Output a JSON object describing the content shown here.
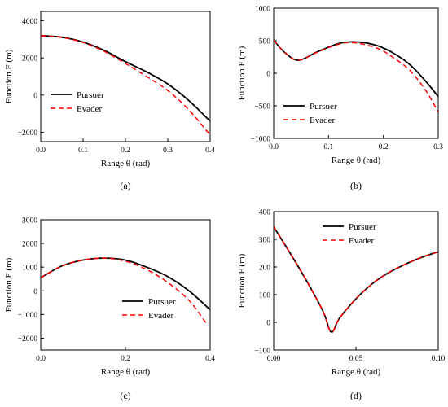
{
  "figure": {
    "colors": {
      "pursuer": "#000000",
      "evader": "#ff0000"
    }
  },
  "chart_data": [
    {
      "type": "line",
      "panel_label": "(a)",
      "xlabel": "Range θ (rad)",
      "ylabel": "Function F (m)",
      "xlim": [
        0,
        0.4
      ],
      "ylim": [
        -2500,
        4500
      ],
      "x_ticks": [
        0.0,
        0.1,
        0.2,
        0.3,
        0.4
      ],
      "x_tick_labels": [
        "0.0",
        "0.1",
        "0.2",
        "0.3",
        "0.4"
      ],
      "y_ticks": [
        -2000,
        0,
        2000,
        4000
      ],
      "y_tick_labels": [
        "−2000",
        "0",
        "2000",
        "4000"
      ],
      "legend_position": "middle-left",
      "series": [
        {
          "name": "Pursuer",
          "style": "solid",
          "x": [
            0.0,
            0.05,
            0.1,
            0.15,
            0.2,
            0.25,
            0.3,
            0.35,
            0.4
          ],
          "y": [
            3200,
            3110,
            2850,
            2400,
            1800,
            1250,
            600,
            -300,
            -1400
          ]
        },
        {
          "name": "Evader",
          "style": "dashed",
          "x": [
            0.0,
            0.05,
            0.1,
            0.15,
            0.2,
            0.25,
            0.3,
            0.35,
            0.4
          ],
          "y": [
            3200,
            3100,
            2830,
            2350,
            1700,
            1000,
            250,
            -800,
            -2150
          ]
        }
      ]
    },
    {
      "type": "line",
      "panel_label": "(b)",
      "xlabel": "Range θ (rad)",
      "ylabel": "Function F (m)",
      "xlim": [
        0,
        0.3
      ],
      "ylim": [
        -1000,
        1000
      ],
      "x_ticks": [
        0.0,
        0.1,
        0.2,
        0.3
      ],
      "x_tick_labels": [
        "0.0",
        "0.1",
        "0.2",
        "0.3"
      ],
      "y_ticks": [
        -1000,
        -500,
        0,
        500,
        1000
      ],
      "y_tick_labels": [
        "−1000",
        "−500",
        "0",
        "500",
        "1000"
      ],
      "legend_position": "lower-left",
      "series": [
        {
          "name": "Pursuer",
          "style": "solid",
          "x": [
            0.0,
            0.02,
            0.045,
            0.08,
            0.12,
            0.155,
            0.19,
            0.22,
            0.25,
            0.28,
            0.3
          ],
          "y": [
            510,
            320,
            200,
            330,
            460,
            480,
            420,
            300,
            120,
            -150,
            -360
          ]
        },
        {
          "name": "Evader",
          "style": "dashed",
          "x": [
            0.0,
            0.02,
            0.045,
            0.08,
            0.12,
            0.15,
            0.19,
            0.22,
            0.25,
            0.28,
            0.3
          ],
          "y": [
            510,
            320,
            200,
            325,
            450,
            465,
            380,
            230,
            30,
            -300,
            -600
          ]
        }
      ]
    },
    {
      "type": "line",
      "panel_label": "(c)",
      "xlabel": "Range θ (rad)",
      "ylabel": "Function F (m)",
      "xlim": [
        0,
        0.4
      ],
      "ylim": [
        -2500,
        3000
      ],
      "x_ticks": [
        0.0,
        0.2,
        0.4
      ],
      "x_tick_labels": [
        "0.0",
        "0.2",
        "0.4"
      ],
      "y_ticks": [
        -2000,
        -1000,
        0,
        1000,
        2000,
        3000
      ],
      "y_tick_labels": [
        "−2000",
        "−1000",
        "0",
        "1000",
        "2000",
        "3000"
      ],
      "legend_position": "middle-right",
      "series": [
        {
          "name": "Pursuer",
          "style": "solid",
          "x": [
            0.0,
            0.05,
            0.1,
            0.15,
            0.2,
            0.25,
            0.3,
            0.35,
            0.4
          ],
          "y": [
            550,
            1050,
            1300,
            1380,
            1300,
            1000,
            600,
            0,
            -800
          ]
        },
        {
          "name": "Evader",
          "style": "dashed",
          "x": [
            0.0,
            0.05,
            0.1,
            0.15,
            0.2,
            0.25,
            0.3,
            0.35,
            0.39
          ],
          "y": [
            550,
            1050,
            1300,
            1380,
            1250,
            900,
            350,
            -400,
            -1350
          ]
        }
      ]
    },
    {
      "type": "line",
      "panel_label": "(d)",
      "xlabel": "Range θ (rad)",
      "ylabel": "Function F (m)",
      "xlim": [
        0,
        0.1
      ],
      "ylim": [
        -100,
        400
      ],
      "x_ticks": [
        0.0,
        0.05,
        0.1
      ],
      "x_tick_labels": [
        "0.00",
        "0.05",
        "0.10"
      ],
      "y_ticks": [
        -100,
        0,
        100,
        200,
        300,
        400
      ],
      "y_tick_labels": [
        "−100",
        "0",
        "100",
        "200",
        "300",
        "400"
      ],
      "legend_position": "top-center",
      "series": [
        {
          "name": "Pursuer",
          "style": "solid",
          "x": [
            0.0,
            0.01,
            0.02,
            0.03,
            0.035,
            0.04,
            0.05,
            0.06,
            0.07,
            0.08,
            0.09,
            0.1
          ],
          "y": [
            345,
            250,
            150,
            40,
            -35,
            15,
            85,
            140,
            180,
            210,
            235,
            255
          ]
        },
        {
          "name": "Evader",
          "style": "dashed",
          "x": [
            0.0,
            0.01,
            0.02,
            0.03,
            0.035,
            0.04,
            0.05,
            0.06,
            0.07,
            0.08,
            0.09,
            0.1
          ],
          "y": [
            345,
            250,
            150,
            40,
            -35,
            15,
            85,
            140,
            180,
            210,
            235,
            255
          ]
        }
      ]
    }
  ]
}
